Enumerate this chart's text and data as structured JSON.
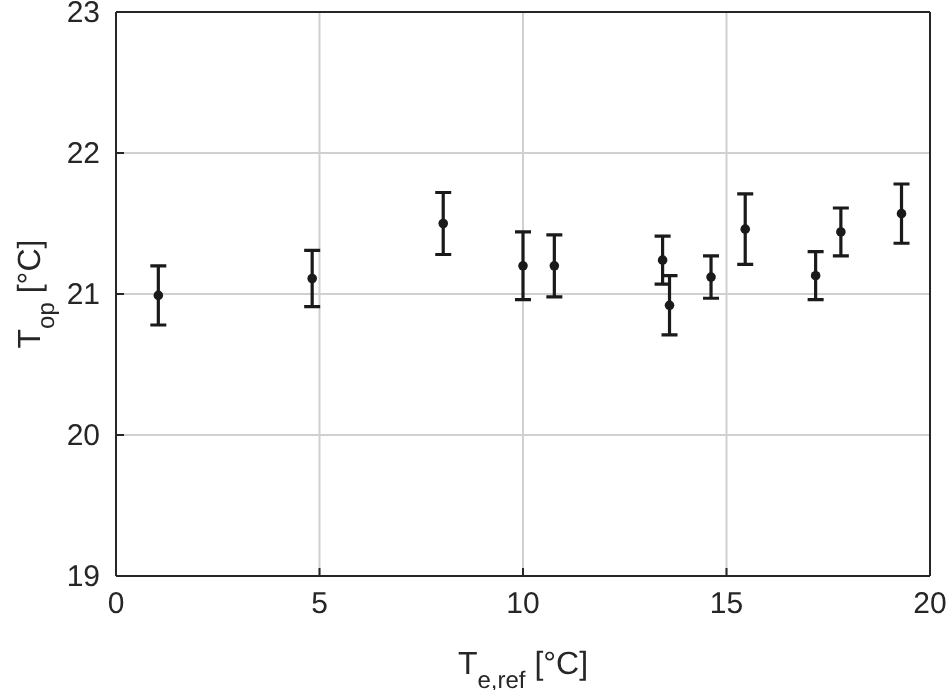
{
  "chart_data": {
    "type": "scatter",
    "xlabel": "T$_{e,ref}$ [°C]",
    "ylabel": "T$_{op}$ [°C]",
    "x": [
      1.04,
      4.82,
      8.04,
      10.0,
      10.77,
      13.43,
      13.6,
      14.62,
      15.46,
      17.19,
      17.81,
      19.3
    ],
    "series": [
      {
        "color": "#1a1a1a",
        "values": [
          20.99,
          21.11,
          21.5,
          21.2,
          21.2,
          21.24,
          20.92,
          21.12,
          21.46,
          21.13,
          21.44,
          21.57
        ],
        "errors": [
          0.21,
          0.2,
          0.22,
          0.24,
          0.22,
          0.17,
          0.21,
          0.15,
          0.25,
          0.17,
          0.17,
          0.21
        ]
      }
    ],
    "xlim": [
      0,
      20
    ],
    "xticks": [
      0,
      5,
      10,
      15,
      20
    ],
    "ylim": [
      19,
      23
    ],
    "yticks": [
      19,
      20,
      21,
      22,
      23
    ],
    "grid": true,
    "marker": "circle"
  }
}
